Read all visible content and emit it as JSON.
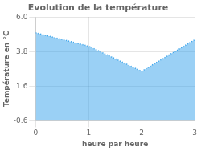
{
  "chart_data": {
    "type": "area",
    "title": "Evolution de la température",
    "xlabel": "heure par heure",
    "ylabel": "Température en °C",
    "x": [
      0,
      1,
      2,
      3
    ],
    "values": [
      5.0,
      4.15,
      2.55,
      4.55
    ],
    "xlim": [
      0,
      3
    ],
    "ylim": [
      -0.6,
      6.0
    ],
    "xticks": [
      0,
      1,
      2,
      3
    ],
    "yticks": [
      -0.6,
      1.6,
      3.8,
      {
        "value": 6.0,
        "label": "6.0"
      }
    ],
    "grid": true,
    "line_style": "dotted"
  }
}
